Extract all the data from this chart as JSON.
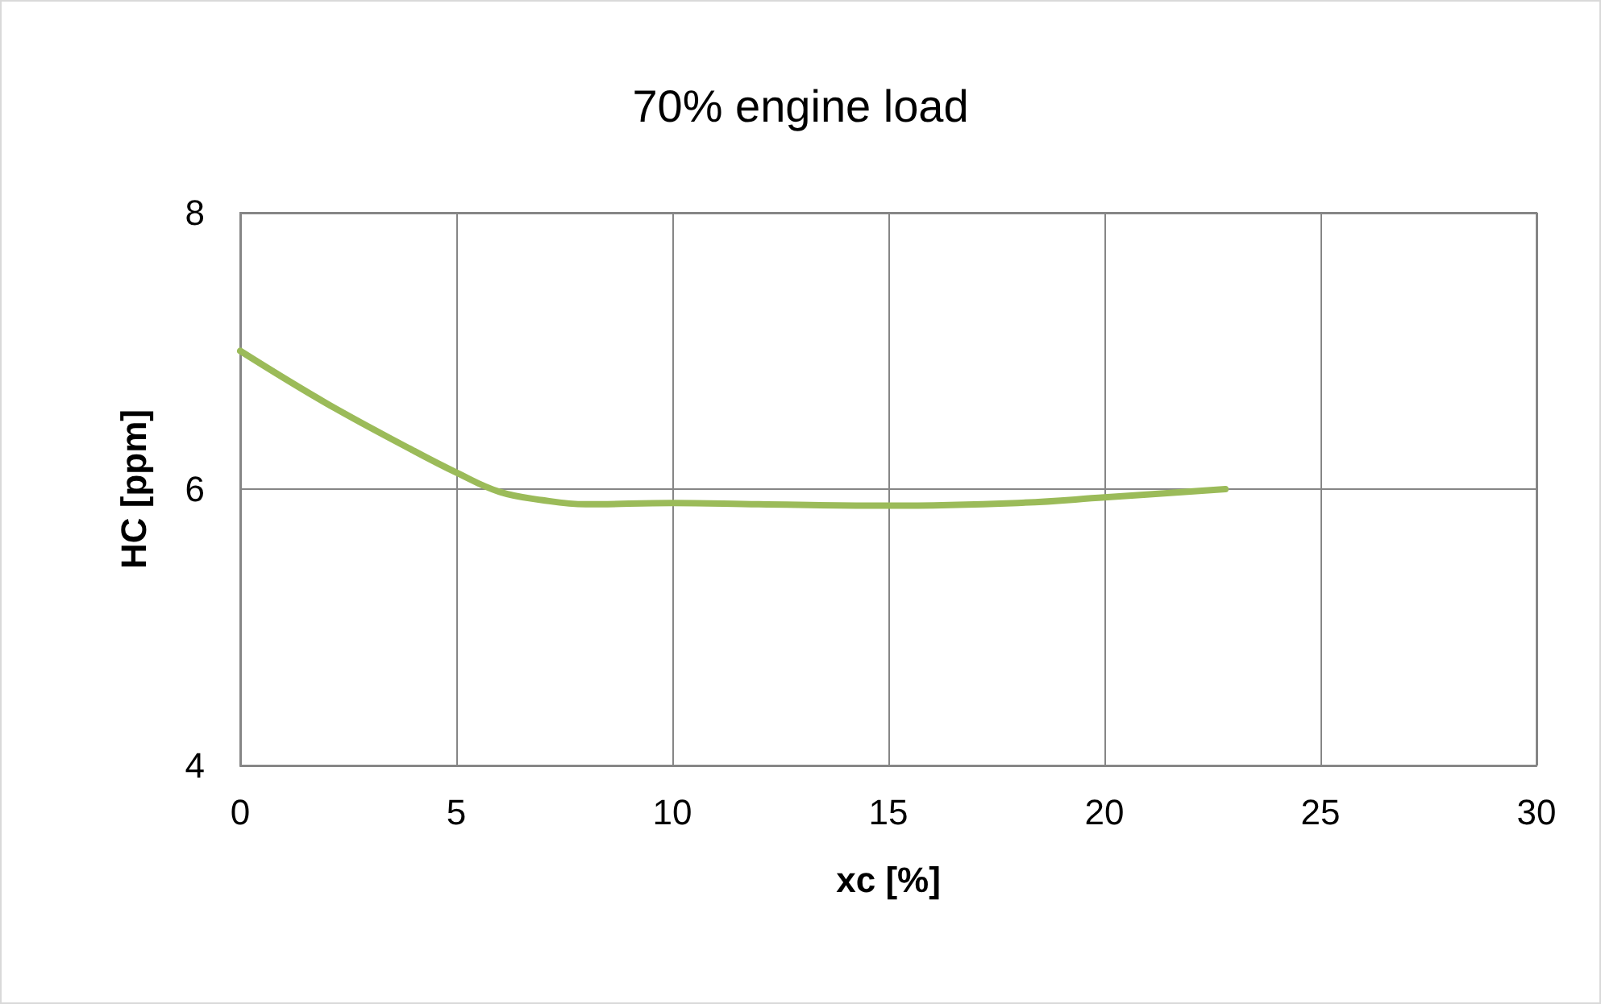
{
  "chart_data": {
    "type": "line",
    "title": "70% engine load",
    "xlabel": "xc [%]",
    "ylabel": "HC [ppm]",
    "x": [
      0,
      2,
      4,
      5,
      6,
      7,
      8,
      10,
      12,
      15,
      18,
      20,
      22.8
    ],
    "series": [
      {
        "color": "#9bbb59",
        "values": [
          7.0,
          6.62,
          6.28,
          6.12,
          5.98,
          5.92,
          5.89,
          5.9,
          5.89,
          5.88,
          5.9,
          5.94,
          6.0
        ]
      }
    ],
    "xlim": [
      0,
      30
    ],
    "xticks": [
      0,
      5,
      10,
      15,
      20,
      25,
      30
    ],
    "ylim": [
      4,
      8
    ],
    "yticks": [
      4,
      6,
      8
    ],
    "grid": true,
    "marker": "none",
    "line_style": "solid"
  }
}
